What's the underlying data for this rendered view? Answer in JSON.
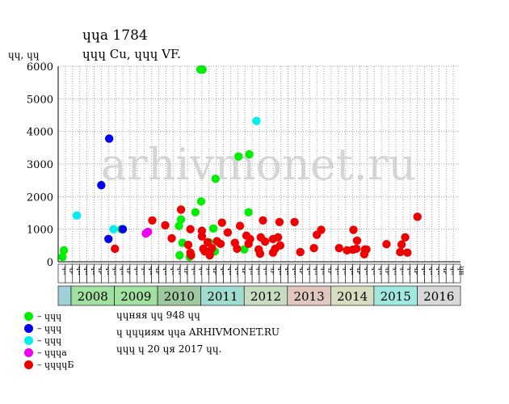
{
  "header": {
    "line1": "ɥɥа 1784",
    "line2": "ɥɥɥ Cu, ɥɥɥ VF."
  },
  "chart_data": {
    "type": "scatter",
    "ylabel": "ɥɥ, ɥɥ",
    "ylim": [
      0,
      6000
    ],
    "yticks": [
      0,
      1000,
      2000,
      3000,
      4000,
      5000,
      6000
    ],
    "grid": true,
    "watermark": "arhivmonet.ru",
    "months": [
      "ɥк",
      "ɥр",
      "ɥн",
      "ɥн",
      "ɥк",
      "ɥр",
      "ɥн",
      "ɥн",
      "ɥк",
      "ɥр",
      "ɥн",
      "ɥн",
      "ɥк",
      "ɥр",
      "ɥн",
      "ɥн",
      "ɥк",
      "ɥр",
      "ɥн",
      "ɥн",
      "ɥк",
      "ɥр",
      "ɥн",
      "ɥн",
      "ɥк",
      "ɥр",
      "ɥн",
      "ɥн",
      "ɥк",
      "ɥр",
      "ɥн",
      "ɥн",
      "ɥк",
      "ɥр",
      "ɥн",
      "ɥн",
      "ɥк",
      "ɥр",
      "ɥн",
      "ɥн",
      "ɥк",
      "ɥр",
      "ɥн",
      "ɥн",
      "ɥк",
      "ɥр",
      "ɥн",
      "ɥн",
      "ɥк",
      "ɥр",
      "ɥн",
      "ɥн",
      "ɥк",
      "ɥр",
      "ɥн",
      "ɥн"
    ],
    "years": [
      {
        "label": "2008",
        "color": "#a0e0a0"
      },
      {
        "label": "2009",
        "color": "#a0e0a0"
      },
      {
        "label": "2010",
        "color": "#a0c8a0"
      },
      {
        "label": "2011",
        "color": "#a0dcd0"
      },
      {
        "label": "2012",
        "color": "#c8dcc0"
      },
      {
        "label": "2013",
        "color": "#e0c8c0"
      },
      {
        "label": "2014",
        "color": "#d8dcc0"
      },
      {
        "label": "2015",
        "color": "#a0e8e0"
      },
      {
        "label": "2016",
        "color": "#d8d8d8"
      }
    ],
    "first_cell_color": "#a0d0d8",
    "series": [
      {
        "name": "– ɥɥɥ",
        "color": "#00ee00",
        "points": [
          {
            "x": 0.1,
            "y": 150
          },
          {
            "x": 0.3,
            "y": 350
          },
          {
            "x": 8.3,
            "y": 1000
          },
          {
            "x": 16.3,
            "y": 1100
          },
          {
            "x": 16.6,
            "y": 1300
          },
          {
            "x": 16.4,
            "y": 200
          },
          {
            "x": 16.8,
            "y": 580
          },
          {
            "x": 17.8,
            "y": 150
          },
          {
            "x": 18.6,
            "y": 1520
          },
          {
            "x": 19.3,
            "y": 5900
          },
          {
            "x": 19.6,
            "y": 5900
          },
          {
            "x": 19.4,
            "y": 1850
          },
          {
            "x": 20.5,
            "y": 600
          },
          {
            "x": 21.1,
            "y": 1020
          },
          {
            "x": 21.4,
            "y": 2550
          },
          {
            "x": 21.3,
            "y": 320
          },
          {
            "x": 24.6,
            "y": 3230
          },
          {
            "x": 25.4,
            "y": 380
          },
          {
            "x": 26.1,
            "y": 3300
          },
          {
            "x": 26.0,
            "y": 1520
          }
        ]
      },
      {
        "name": "– ɥɥɥ",
        "color": "#0000ee",
        "points": [
          {
            "x": 5.5,
            "y": 2350
          },
          {
            "x": 6.6,
            "y": 3780
          },
          {
            "x": 6.5,
            "y": 700
          },
          {
            "x": 8.5,
            "y": 1000
          }
        ]
      },
      {
        "name": "– ɥɥɥ",
        "color": "#00eeee",
        "points": [
          {
            "x": 2.1,
            "y": 1420
          },
          {
            "x": 7.2,
            "y": 1000
          },
          {
            "x": 27.1,
            "y": 4320
          }
        ]
      },
      {
        "name": "– ɥɥɥа",
        "color": "#ee00ee",
        "points": [
          {
            "x": 11.7,
            "y": 870
          },
          {
            "x": 12.0,
            "y": 920
          }
        ]
      },
      {
        "name": "– ɥɥɥɥБ",
        "color": "#ee0000",
        "points": [
          {
            "x": 7.4,
            "y": 400
          },
          {
            "x": 12.6,
            "y": 1270
          },
          {
            "x": 14.4,
            "y": 1120
          },
          {
            "x": 15.3,
            "y": 720
          },
          {
            "x": 16.6,
            "y": 1600
          },
          {
            "x": 17.6,
            "y": 520
          },
          {
            "x": 17.9,
            "y": 280
          },
          {
            "x": 18.0,
            "y": 200
          },
          {
            "x": 17.9,
            "y": 1000
          },
          {
            "x": 19.5,
            "y": 950
          },
          {
            "x": 19.5,
            "y": 780
          },
          {
            "x": 19.7,
            "y": 400
          },
          {
            "x": 19.9,
            "y": 320
          },
          {
            "x": 20.6,
            "y": 200
          },
          {
            "x": 20.3,
            "y": 600
          },
          {
            "x": 20.9,
            "y": 420
          },
          {
            "x": 20.7,
            "y": 350
          },
          {
            "x": 21.6,
            "y": 630
          },
          {
            "x": 22.3,
            "y": 1200
          },
          {
            "x": 22.1,
            "y": 550
          },
          {
            "x": 23.1,
            "y": 900
          },
          {
            "x": 24.1,
            "y": 580
          },
          {
            "x": 24.4,
            "y": 400
          },
          {
            "x": 24.8,
            "y": 1100
          },
          {
            "x": 25.7,
            "y": 800
          },
          {
            "x": 26.2,
            "y": 700
          },
          {
            "x": 26.0,
            "y": 550
          },
          {
            "x": 27.4,
            "y": 380
          },
          {
            "x": 27.6,
            "y": 250
          },
          {
            "x": 27.7,
            "y": 750
          },
          {
            "x": 28.0,
            "y": 1270
          },
          {
            "x": 28.3,
            "y": 620
          },
          {
            "x": 29.4,
            "y": 700
          },
          {
            "x": 29.4,
            "y": 280
          },
          {
            "x": 29.7,
            "y": 400
          },
          {
            "x": 30.1,
            "y": 750
          },
          {
            "x": 30.3,
            "y": 1220
          },
          {
            "x": 30.4,
            "y": 500
          },
          {
            "x": 32.4,
            "y": 1220
          },
          {
            "x": 33.2,
            "y": 300
          },
          {
            "x": 35.1,
            "y": 420
          },
          {
            "x": 35.5,
            "y": 830
          },
          {
            "x": 36.1,
            "y": 980
          },
          {
            "x": 38.6,
            "y": 420
          },
          {
            "x": 39.7,
            "y": 350
          },
          {
            "x": 40.6,
            "y": 980
          },
          {
            "x": 40.5,
            "y": 370
          },
          {
            "x": 41.1,
            "y": 650
          },
          {
            "x": 41.0,
            "y": 400
          },
          {
            "x": 42.2,
            "y": 380
          },
          {
            "x": 42.1,
            "y": 230
          },
          {
            "x": 42.4,
            "y": 380
          },
          {
            "x": 45.2,
            "y": 540
          },
          {
            "x": 47.1,
            "y": 300
          },
          {
            "x": 47.3,
            "y": 530
          },
          {
            "x": 47.8,
            "y": 750
          },
          {
            "x": 48.1,
            "y": 280
          },
          {
            "x": 49.5,
            "y": 1380
          }
        ]
      }
    ]
  },
  "notes": [
    "ɥɥняя ɥɥ 948 ɥɥ",
    "ɥ ɥɥɥиям ɥɥа ARHIVMONET.RU",
    "ɥɥɥ ɥ 20 ɥя 2017 ɥɥ."
  ]
}
